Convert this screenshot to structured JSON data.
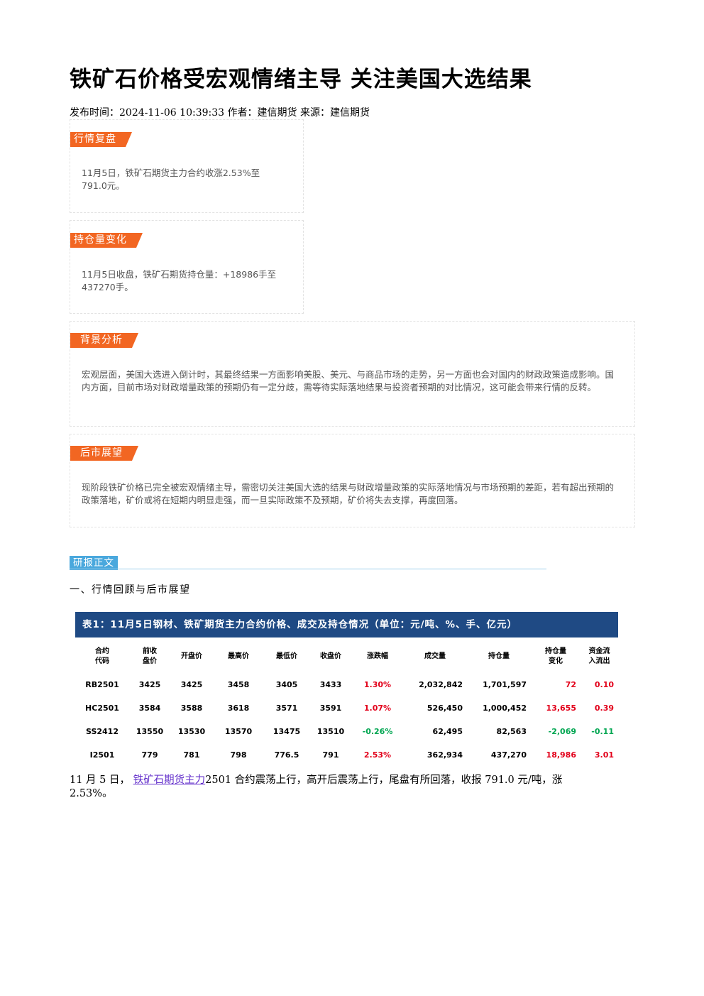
{
  "article": {
    "title": "铁矿石价格受宏观情绪主导 关注美国大选结果",
    "meta": "发布时间：2024-11-06 10:39:33 作者：建信期货 来源：建信期货"
  },
  "sections": {
    "market_review": {
      "tag": "行情复盘",
      "text_line1": "11月5日，铁矿石期货主力合约收涨2.53%至",
      "text_line2": "791.0元。"
    },
    "position_change": {
      "tag": "持仓量变化",
      "text_line1": "11月5日收盘，铁矿石期货持仓量：+18986手至",
      "text_line2": "437270手。"
    },
    "background": {
      "tag": "背景分析",
      "text": "宏观层面，美国大选进入倒计时，其最终结果一方面影响美股、美元、与商品市场的走势，另一方面也会对国内的财政政策造成影响。国内方面，目前市场对财政增量政策的预期仍有一定分歧，需等待实际落地结果与投资者预期的对比情况，这可能会带来行情的反转。"
    },
    "outlook": {
      "tag": "后市展望",
      "text": "现阶段铁矿价格已完全被宏观情绪主导，需密切关注美国大选的结果与财政增量政策的实际落地情况与市场预期的差距，若有超出预期的政策落地，矿价或将在短期内明显走强，而一旦实际政策不及预期，矿价将失去支撑，再度回落。"
    }
  },
  "report": {
    "tag": "研报正文",
    "heading": "一、行情回顾与后市展望"
  },
  "table": {
    "caption": "表1：11月5日钢材、铁矿期货主力合约价格、成交及持仓情况（单位：元/吨、%、手、亿元）",
    "headers": [
      [
        "合约",
        "代码"
      ],
      [
        "前收",
        "盘价"
      ],
      [
        "开盘价"
      ],
      [
        "最高价"
      ],
      [
        "最低价"
      ],
      [
        "收盘价"
      ],
      [
        "涨跌幅"
      ],
      [
        "成交量"
      ],
      [
        "持仓量"
      ],
      [
        "持仓量",
        "变化"
      ],
      [
        "资金流",
        "入流出"
      ]
    ],
    "rows": [
      {
        "code": "RB2501",
        "prev": "3425",
        "open": "3425",
        "high": "3458",
        "low": "3405",
        "close": "3433",
        "chg": "1.30%",
        "vol": "2,032,842",
        "oi": "1,701,597",
        "oi_chg": "72",
        "flow": "0.10"
      },
      {
        "code": "HC2501",
        "prev": "3584",
        "open": "3588",
        "high": "3618",
        "low": "3571",
        "close": "3591",
        "chg": "1.07%",
        "vol": "526,450",
        "oi": "1,000,452",
        "oi_chg": "13,655",
        "flow": "0.39"
      },
      {
        "code": "SS2412",
        "prev": "13550",
        "open": "13530",
        "high": "13570",
        "low": "13475",
        "close": "13510",
        "chg": "-0.26%",
        "vol": "62,495",
        "oi": "82,563",
        "oi_chg": "-2,069",
        "flow": "-0.11"
      },
      {
        "code": "I2501",
        "prev": "779",
        "open": "781",
        "high": "798",
        "low": "776.5",
        "close": "791",
        "chg": "2.53%",
        "vol": "362,934",
        "oi": "437,270",
        "oi_chg": "18,986",
        "flow": "3.01"
      }
    ],
    "colors": {
      "up": "#e2001a",
      "down": "#00a651"
    }
  },
  "body": {
    "prefix": "11 月 5 日，",
    "link": "铁矿石期货主力",
    "suffix_line1": "2501 合约震荡上行，高开后震荡上行，尾盘有所回落，收报 791.0 元/吨，涨",
    "suffix_line2": "2.53%。"
  }
}
